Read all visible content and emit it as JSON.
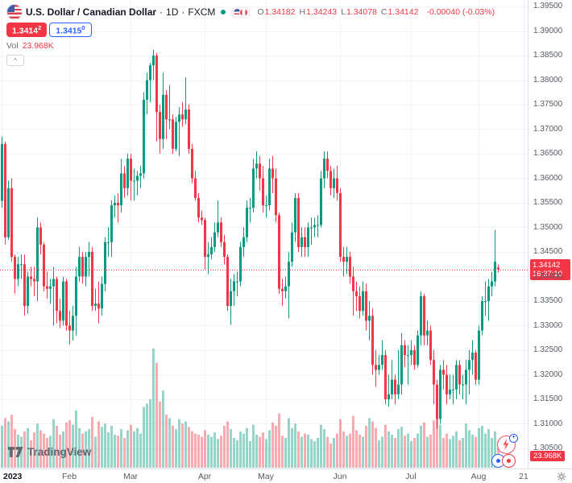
{
  "header": {
    "symbol": "U.S. Dollar / Canadian Dollar",
    "dot": "·",
    "interval": "1D",
    "exchange": "FXCM",
    "ohlc": {
      "o_label": "O",
      "o": "1.34182",
      "h_label": "H",
      "h": "1.34243",
      "l_label": "L",
      "l": "1.34078",
      "c_label": "C",
      "c": "1.34142",
      "change": "-0.00040 (-0.03%)"
    },
    "sell": {
      "main": "1.3414",
      "sup": "2"
    },
    "buy": {
      "main": "1.3415",
      "sup": "0"
    },
    "vol_label": "Vol",
    "vol_value": "23.968K",
    "collapse_glyph": "^"
  },
  "axis": {
    "price_tag": {
      "price": "1.34142",
      "countdown": "16:37:10"
    },
    "vol_tag": "23.968K"
  },
  "footer": {
    "logo_text": "TradingView"
  },
  "colors": {
    "up": "#089981",
    "down": "#f23645",
    "vol_up": "rgba(8,153,129,0.42)",
    "vol_down": "rgba(242,54,69,0.42)",
    "grid": "#f0f3fa",
    "accent_blue": "#2962ff",
    "tag_red": "#f23645"
  },
  "chart_data": {
    "type": "candlestick",
    "title": "U.S. Dollar / Canadian Dollar, 1D, FXCM",
    "volume_overlay": true,
    "last_price": 1.34142,
    "countdown": "16:37:10",
    "price_axis": {
      "min": 1.305,
      "max": 1.395,
      "step": 0.005,
      "labels": [
        "1.39500",
        "1.39000",
        "1.38500",
        "1.38000",
        "1.37500",
        "1.37000",
        "1.36500",
        "1.36000",
        "1.35500",
        "1.35000",
        "1.34500",
        "1.34000",
        "1.33500",
        "1.33000",
        "1.32500",
        "1.32000",
        "1.31500",
        "1.31000",
        "1.30500"
      ]
    },
    "time_axis": {
      "labels": [
        {
          "text": "2023",
          "index": 0,
          "bold": true
        },
        {
          "text": "Feb",
          "index": 21
        },
        {
          "text": "Mar",
          "index": 40
        },
        {
          "text": "Apr",
          "index": 63
        },
        {
          "text": "May",
          "index": 82
        },
        {
          "text": "Jun",
          "index": 105
        },
        {
          "text": "Jul",
          "index": 127
        },
        {
          "text": "Aug",
          "index": 148
        },
        {
          "text": "21",
          "index": 162
        }
      ]
    },
    "candles": [
      [
        1.3554,
        1.3685,
        1.354,
        1.367
      ],
      [
        1.367,
        1.3675,
        1.3465,
        1.348
      ],
      [
        1.348,
        1.3595,
        1.3475,
        1.358
      ],
      [
        1.358,
        1.36,
        1.343,
        1.344
      ],
      [
        1.344,
        1.3445,
        1.3365,
        1.3395
      ],
      [
        1.3395,
        1.344,
        1.338,
        1.3425
      ],
      [
        1.3425,
        1.3445,
        1.3395,
        1.3425
      ],
      [
        1.3425,
        1.3445,
        1.332,
        1.334
      ],
      [
        1.334,
        1.341,
        1.3325,
        1.34
      ],
      [
        1.34,
        1.342,
        1.338,
        1.3395
      ],
      [
        1.3395,
        1.342,
        1.336,
        1.339
      ],
      [
        1.339,
        1.352,
        1.335,
        1.35
      ],
      [
        1.35,
        1.351,
        1.3445,
        1.3465
      ],
      [
        1.3465,
        1.347,
        1.337,
        1.338
      ],
      [
        1.338,
        1.341,
        1.3355,
        1.3375
      ],
      [
        1.3375,
        1.3395,
        1.3345,
        1.338
      ],
      [
        1.338,
        1.342,
        1.33,
        1.3395
      ],
      [
        1.3395,
        1.34,
        1.3305,
        1.333
      ],
      [
        1.333,
        1.3355,
        1.3295,
        1.331
      ],
      [
        1.331,
        1.34,
        1.33,
        1.339
      ],
      [
        1.339,
        1.3395,
        1.329,
        1.33
      ],
      [
        1.33,
        1.333,
        1.3262,
        1.329
      ],
      [
        1.329,
        1.334,
        1.327,
        1.332
      ],
      [
        1.332,
        1.342,
        1.328,
        1.34
      ],
      [
        1.34,
        1.346,
        1.339,
        1.344
      ],
      [
        1.344,
        1.345,
        1.3385,
        1.34
      ],
      [
        1.34,
        1.345,
        1.338,
        1.344
      ],
      [
        1.344,
        1.347,
        1.34,
        1.345
      ],
      [
        1.345,
        1.346,
        1.333,
        1.334
      ],
      [
        1.334,
        1.3375,
        1.333,
        1.3345
      ],
      [
        1.3345,
        1.339,
        1.3305,
        1.3335
      ],
      [
        1.3335,
        1.34,
        1.332,
        1.3385
      ],
      [
        1.3385,
        1.348,
        1.337,
        1.347
      ],
      [
        1.347,
        1.35,
        1.344,
        1.347
      ],
      [
        1.347,
        1.3555,
        1.344,
        1.3545
      ],
      [
        1.3545,
        1.3565,
        1.352,
        1.355
      ],
      [
        1.355,
        1.357,
        1.351,
        1.3545
      ],
      [
        1.3545,
        1.364,
        1.353,
        1.361
      ],
      [
        1.361,
        1.3625,
        1.356,
        1.358
      ],
      [
        1.358,
        1.365,
        1.3565,
        1.364
      ],
      [
        1.364,
        1.365,
        1.3555,
        1.3595
      ],
      [
        1.3595,
        1.362,
        1.3555,
        1.3595
      ],
      [
        1.3595,
        1.3615,
        1.3565,
        1.3605
      ],
      [
        1.3605,
        1.3625,
        1.358,
        1.361
      ],
      [
        1.361,
        1.3775,
        1.36,
        1.376
      ],
      [
        1.376,
        1.3815,
        1.373,
        1.38
      ],
      [
        1.38,
        1.3835,
        1.3755,
        1.383
      ],
      [
        1.383,
        1.3862,
        1.38,
        1.385
      ],
      [
        1.385,
        1.3855,
        1.3675,
        1.3735
      ],
      [
        1.3735,
        1.375,
        1.365,
        1.368
      ],
      [
        1.368,
        1.3815,
        1.366,
        1.377
      ],
      [
        1.377,
        1.378,
        1.368,
        1.372
      ],
      [
        1.372,
        1.379,
        1.37,
        1.372
      ],
      [
        1.372,
        1.373,
        1.365,
        1.366
      ],
      [
        1.366,
        1.3725,
        1.3655,
        1.3715
      ],
      [
        1.3715,
        1.3745,
        1.3645,
        1.373
      ],
      [
        1.373,
        1.3755,
        1.3705,
        1.372
      ],
      [
        1.372,
        1.3805,
        1.371,
        1.374
      ],
      [
        1.374,
        1.375,
        1.365,
        1.366
      ],
      [
        1.366,
        1.367,
        1.359,
        1.36
      ],
      [
        1.36,
        1.3615,
        1.3555,
        1.356
      ],
      [
        1.356,
        1.357,
        1.351,
        1.352
      ],
      [
        1.352,
        1.3535,
        1.3505,
        1.3515
      ],
      [
        1.3515,
        1.352,
        1.3415,
        1.344
      ],
      [
        1.344,
        1.347,
        1.3405,
        1.3445
      ],
      [
        1.3445,
        1.348,
        1.3435,
        1.346
      ],
      [
        1.346,
        1.351,
        1.345,
        1.349
      ],
      [
        1.349,
        1.3555,
        1.348,
        1.351
      ],
      [
        1.351,
        1.352,
        1.346,
        1.347
      ],
      [
        1.347,
        1.3485,
        1.3425,
        1.344
      ],
      [
        1.344,
        1.3445,
        1.333,
        1.334
      ],
      [
        1.334,
        1.3395,
        1.3302,
        1.337
      ],
      [
        1.337,
        1.3405,
        1.334,
        1.339
      ],
      [
        1.339,
        1.341,
        1.336,
        1.339
      ],
      [
        1.339,
        1.347,
        1.338,
        1.346
      ],
      [
        1.346,
        1.35,
        1.344,
        1.348
      ],
      [
        1.348,
        1.3555,
        1.347,
        1.354
      ],
      [
        1.354,
        1.356,
        1.351,
        1.354
      ],
      [
        1.354,
        1.364,
        1.353,
        1.362
      ],
      [
        1.362,
        1.3655,
        1.36,
        1.363
      ],
      [
        1.363,
        1.3645,
        1.3575,
        1.36
      ],
      [
        1.36,
        1.3625,
        1.353,
        1.3545
      ],
      [
        1.3545,
        1.3565,
        1.352,
        1.3545
      ],
      [
        1.3545,
        1.364,
        1.3535,
        1.362
      ],
      [
        1.362,
        1.3645,
        1.357,
        1.36
      ],
      [
        1.36,
        1.362,
        1.351,
        1.3525
      ],
      [
        1.3525,
        1.353,
        1.3365,
        1.3375
      ],
      [
        1.3375,
        1.3395,
        1.334,
        1.337
      ],
      [
        1.337,
        1.34,
        1.3355,
        1.338
      ],
      [
        1.338,
        1.345,
        1.3315,
        1.343
      ],
      [
        1.343,
        1.351,
        1.342,
        1.349
      ],
      [
        1.349,
        1.357,
        1.347,
        1.356
      ],
      [
        1.356,
        1.357,
        1.345,
        1.346
      ],
      [
        1.346,
        1.35,
        1.344,
        1.348
      ],
      [
        1.348,
        1.35,
        1.344,
        1.346
      ],
      [
        1.346,
        1.351,
        1.344,
        1.35
      ],
      [
        1.35,
        1.352,
        1.3465,
        1.35
      ],
      [
        1.35,
        1.352,
        1.348,
        1.3505
      ],
      [
        1.3505,
        1.3525,
        1.348,
        1.3505
      ],
      [
        1.3505,
        1.3615,
        1.35,
        1.36
      ],
      [
        1.36,
        1.3655,
        1.358,
        1.364
      ],
      [
        1.364,
        1.3655,
        1.36,
        1.3615
      ],
      [
        1.3615,
        1.3625,
        1.3565,
        1.358
      ],
      [
        1.358,
        1.362,
        1.356,
        1.36
      ],
      [
        1.36,
        1.3625,
        1.3555,
        1.357
      ],
      [
        1.357,
        1.358,
        1.343,
        1.344
      ],
      [
        1.344,
        1.346,
        1.34,
        1.343
      ],
      [
        1.343,
        1.346,
        1.3405,
        1.344
      ],
      [
        1.344,
        1.345,
        1.3385,
        1.34
      ],
      [
        1.34,
        1.342,
        1.332,
        1.337
      ],
      [
        1.337,
        1.339,
        1.333,
        1.336
      ],
      [
        1.336,
        1.338,
        1.3315,
        1.333
      ],
      [
        1.333,
        1.339,
        1.332,
        1.337
      ],
      [
        1.337,
        1.3385,
        1.329,
        1.331
      ],
      [
        1.331,
        1.335,
        1.327,
        1.332
      ],
      [
        1.332,
        1.3335,
        1.32,
        1.322
      ],
      [
        1.322,
        1.325,
        1.3175,
        1.321
      ],
      [
        1.321,
        1.324,
        1.32,
        1.322
      ],
      [
        1.322,
        1.327,
        1.321,
        1.324
      ],
      [
        1.324,
        1.325,
        1.314,
        1.315
      ],
      [
        1.315,
        1.32,
        1.3135,
        1.316
      ],
      [
        1.316,
        1.323,
        1.315,
        1.319
      ],
      [
        1.319,
        1.32,
        1.314,
        1.316
      ],
      [
        1.316,
        1.325,
        1.315,
        1.318
      ],
      [
        1.318,
        1.3285,
        1.316,
        1.326
      ],
      [
        1.326,
        1.327,
        1.3215,
        1.324
      ],
      [
        1.324,
        1.326,
        1.318,
        1.324
      ],
      [
        1.324,
        1.327,
        1.322,
        1.325
      ],
      [
        1.325,
        1.326,
        1.321,
        1.322
      ],
      [
        1.322,
        1.329,
        1.3215,
        1.328
      ],
      [
        1.328,
        1.337,
        1.326,
        1.336
      ],
      [
        1.336,
        1.3365,
        1.326,
        1.328
      ],
      [
        1.328,
        1.331,
        1.326,
        1.329
      ],
      [
        1.329,
        1.33,
        1.322,
        1.323
      ],
      [
        1.323,
        1.325,
        1.314,
        1.318
      ],
      [
        1.318,
        1.319,
        1.309,
        1.311
      ],
      [
        1.311,
        1.322,
        1.31,
        1.321
      ],
      [
        1.321,
        1.323,
        1.317,
        1.32
      ],
      [
        1.32,
        1.322,
        1.314,
        1.316
      ],
      [
        1.316,
        1.32,
        1.315,
        1.317
      ],
      [
        1.317,
        1.32,
        1.314,
        1.317
      ],
      [
        1.317,
        1.323,
        1.315,
        1.322
      ],
      [
        1.322,
        1.323,
        1.316,
        1.318
      ],
      [
        1.318,
        1.32,
        1.315,
        1.318
      ],
      [
        1.318,
        1.323,
        1.314,
        1.321
      ],
      [
        1.321,
        1.325,
        1.316,
        1.323
      ],
      [
        1.323,
        1.327,
        1.32,
        1.3245
      ],
      [
        1.3245,
        1.325,
        1.318,
        1.319
      ],
      [
        1.319,
        1.33,
        1.318,
        1.329
      ],
      [
        1.329,
        1.336,
        1.328,
        1.335
      ],
      [
        1.335,
        1.339,
        1.332,
        1.335
      ],
      [
        1.335,
        1.3395,
        1.331,
        1.338
      ],
      [
        1.338,
        1.341,
        1.336,
        1.339
      ],
      [
        1.339,
        1.3495,
        1.338,
        1.343
      ],
      [
        1.34182,
        1.34243,
        1.34078,
        1.34142
      ]
    ],
    "volumes_k": [
      38,
      45,
      42,
      48,
      35,
      30,
      28,
      33,
      36,
      25,
      32,
      40,
      34,
      31,
      27,
      29,
      44,
      38,
      30,
      33,
      41,
      43,
      39,
      52,
      36,
      31,
      33,
      35,
      46,
      28,
      42,
      37,
      40,
      32,
      38,
      30,
      29,
      35,
      27,
      34,
      39,
      33,
      36,
      31,
      55,
      58,
      62,
      108,
      95,
      60,
      70,
      48,
      45,
      38,
      35,
      44,
      40,
      42,
      37,
      33,
      31,
      30,
      28,
      34,
      30,
      28,
      32,
      26,
      29,
      38,
      42,
      35,
      27,
      25,
      33,
      31,
      36,
      24,
      39,
      30,
      28,
      32,
      26,
      34,
      41,
      38,
      49,
      29,
      27,
      45,
      36,
      40,
      33,
      28,
      31,
      30,
      26,
      24,
      27,
      39,
      35,
      28,
      22,
      27,
      31,
      44,
      33,
      29,
      31,
      47,
      34,
      30,
      28,
      38,
      45,
      42,
      36,
      25,
      28,
      39,
      33,
      30,
      27,
      35,
      37,
      29,
      31,
      24,
      27,
      31,
      38,
      41,
      28,
      30,
      43,
      46,
      39,
      27,
      31,
      26,
      29,
      33,
      25,
      27,
      40,
      34,
      30,
      28,
      36,
      38,
      31,
      35,
      27,
      33,
      23.968
    ]
  }
}
